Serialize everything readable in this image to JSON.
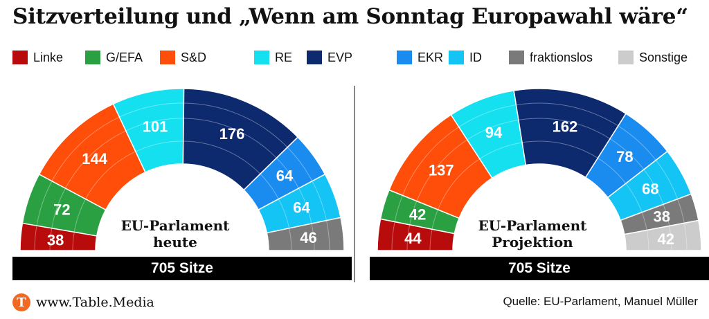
{
  "title": "Sitzverteilung und „Wenn am Sonntag Europawahl wäre“",
  "legend": [
    {
      "label": "Linke",
      "color": "#b80c0c"
    },
    {
      "label": "G/EFA",
      "color": "#2aa043"
    },
    {
      "label": "S&D",
      "color": "#ff4d0a"
    },
    {
      "label": "RE",
      "color": "#14e0f0"
    },
    {
      "label": "EVP",
      "color": "#0e2a6e"
    },
    {
      "label": "EKR",
      "color": "#1a8cf0"
    },
    {
      "label": "ID",
      "color": "#14c4f5"
    },
    {
      "label": "fraktionslos",
      "color": "#7a7a7a"
    },
    {
      "label": "Sonstige",
      "color": "#cccccc"
    }
  ],
  "chart_data": [
    {
      "type": "pie",
      "subtype": "parliament-half-donut",
      "title": "EU-Parlament heute",
      "label_lines": [
        "EU-Parlament",
        "heute"
      ],
      "total_label": "705 Sitze",
      "total": 705,
      "categories": [
        "Linke",
        "G/EFA",
        "S&D",
        "RE",
        "EVP",
        "EKR",
        "ID",
        "fraktionslos"
      ],
      "values": [
        38,
        72,
        144,
        101,
        176,
        64,
        64,
        46
      ]
    },
    {
      "type": "pie",
      "subtype": "parliament-half-donut",
      "title": "EU-Parlament Projektion",
      "label_lines": [
        "EU-Parlament",
        "Projektion"
      ],
      "total_label": "705 Sitze",
      "total": 705,
      "categories": [
        "Linke",
        "G/EFA",
        "S&D",
        "RE",
        "EVP",
        "EKR",
        "ID",
        "fraktionslos",
        "Sonstige"
      ],
      "values": [
        44,
        42,
        137,
        94,
        162,
        78,
        68,
        38,
        42
      ]
    }
  ],
  "footer": {
    "logo_letter": "T",
    "brand": "www.Table.Media",
    "source": "Quelle: EU-Parlament, Manuel Müller"
  }
}
